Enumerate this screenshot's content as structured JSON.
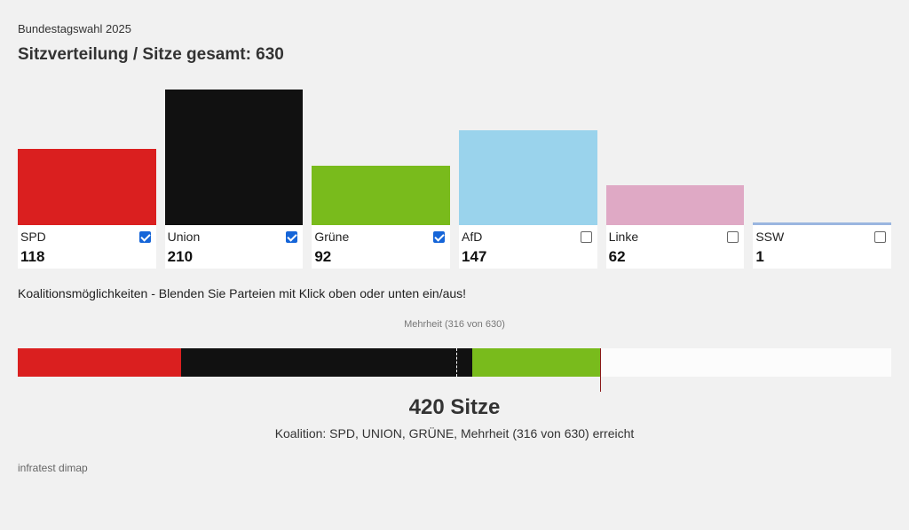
{
  "header": {
    "kicker": "Bundestagswahl 2025",
    "title": "Sitzverteilung / Sitze gesamt: 630"
  },
  "chart_data": {
    "type": "bar",
    "categories": [
      "SPD",
      "Union",
      "Grüne",
      "AfD",
      "Linke",
      "SSW"
    ],
    "values": [
      118,
      210,
      92,
      147,
      62,
      1
    ],
    "total_seats": 630,
    "ylim": [
      0,
      210
    ],
    "colors": [
      "#da1f1f",
      "#111111",
      "#79bb1c",
      "#9ad3ec",
      "#dfa9c5",
      "#9ab6e0"
    ],
    "selected": [
      true,
      true,
      true,
      false,
      false,
      false
    ],
    "seats_display": [
      "118",
      "210",
      "92",
      "147",
      "62",
      "1"
    ]
  },
  "coalition": {
    "hint": "Koalitionsmöglichkeiten - Blenden Sie Parteien mit Klick oben oder unten ein/aus!",
    "majority_label": "Mehrheit (316 von 630)",
    "majority": 316,
    "seats_label": "420 Sitze",
    "result_text": "Koalition: SPD, UNION, GRÜNE, Mehrheit (316 von 630) erreicht"
  },
  "source": "infratest dimap"
}
